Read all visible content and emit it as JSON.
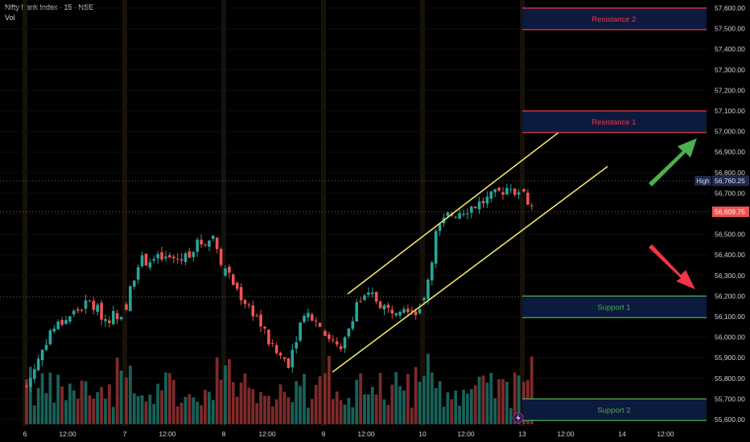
{
  "header": {
    "symbol_line": "Nifty Bank Index · 15 · NSE",
    "vol_label": "Vol"
  },
  "colors": {
    "bull": "#26a69a",
    "bear": "#ef5350",
    "channel": "#f5e663",
    "resistance": "#f23645",
    "support": "#4caf50",
    "zone_fill": "#0c1a3e"
  },
  "chart_data": {
    "type": "candlestick",
    "y_range": [
      55550,
      57660
    ],
    "y_ticks": [
      55600,
      55700,
      55800,
      55900,
      56000,
      56100,
      56200,
      56300,
      56400,
      56500,
      56600,
      56700,
      56800,
      56900,
      57000,
      57100,
      57200,
      57300,
      57400,
      57500,
      57600
    ],
    "y_tick_labels": [
      "55,600.00",
      "55,700.00",
      "55,800.00",
      "55,900.00",
      "56,000.00",
      "56,100.00",
      "56,200.00",
      "56,300.00",
      "56,400.00",
      "56,500.00",
      "56,600.00",
      "56,700.00",
      "56,800.00",
      "56,900.00",
      "57,000.00",
      "57,100.00",
      "57,200.00",
      "57,300.00",
      "57,400.00",
      "57,500.00",
      "57,600.00"
    ],
    "x_labels": [
      "6",
      "12:00",
      "7",
      "12:00",
      "8",
      "12:00",
      "9",
      "12:00",
      "10",
      "12:00",
      "13",
      "12:00",
      "14",
      "12:00"
    ],
    "session_starts": [
      "6",
      "7",
      "8",
      "9",
      "10",
      "13"
    ],
    "bars_per_session": 25,
    "sessions": [
      {
        "day": "6",
        "open": 55760,
        "path": [
          [
            0,
            55760
          ],
          [
            6,
            56030
          ],
          [
            12,
            56120
          ],
          [
            16,
            56170
          ],
          [
            20,
            56090
          ],
          [
            24,
            56120
          ]
        ]
      },
      {
        "day": "7",
        "open": 56160,
        "path": [
          [
            0,
            56160
          ],
          [
            3,
            56370
          ],
          [
            8,
            56380
          ],
          [
            14,
            56380
          ],
          [
            18,
            56450
          ],
          [
            22,
            56490
          ],
          [
            24,
            56380
          ]
        ]
      },
      {
        "day": "8",
        "open": 56300,
        "path": [
          [
            0,
            56320
          ],
          [
            4,
            56200
          ],
          [
            8,
            56100
          ],
          [
            12,
            55940
          ],
          [
            16,
            55880
          ],
          [
            20,
            56130
          ],
          [
            24,
            56060
          ]
        ]
      },
      {
        "day": "9",
        "open": 56030,
        "path": [
          [
            0,
            56030
          ],
          [
            4,
            55920
          ],
          [
            8,
            56170
          ],
          [
            12,
            56200
          ],
          [
            16,
            56130
          ],
          [
            20,
            56160
          ],
          [
            24,
            56120
          ]
        ]
      },
      {
        "day": "10",
        "open": 56180,
        "path": [
          [
            0,
            56180
          ],
          [
            3,
            56500
          ],
          [
            6,
            56590
          ],
          [
            10,
            56620
          ],
          [
            14,
            56650
          ],
          [
            18,
            56690
          ],
          [
            22,
            56740
          ],
          [
            24,
            56680
          ]
        ]
      },
      {
        "day": "13",
        "open": 56720,
        "path": [
          [
            0,
            56720
          ],
          [
            1,
            56650
          ],
          [
            2,
            56610
          ]
        ]
      }
    ],
    "markers": {
      "high": {
        "label": "High",
        "value": 56760.25,
        "value_label": "56,760.25"
      },
      "last": {
        "value": 56609.75,
        "value_label": "56,609.75"
      },
      "ref_line": 56195
    },
    "zones": [
      {
        "label": "Resistance 2",
        "top": 57600,
        "bottom": 57495,
        "kind": "resistance"
      },
      {
        "label": "Resistance 1",
        "top": 57100,
        "bottom": 56995,
        "kind": "resistance"
      },
      {
        "label": "Support 1",
        "top": 56200,
        "bottom": 56095,
        "kind": "support"
      },
      {
        "label": "Support 2",
        "top": 55700,
        "bottom": 55595,
        "kind": "support"
      }
    ],
    "channel": {
      "upper": [
        [
          56200,
          "9@12:00-ish start"
        ],
        [
          57010,
          "end"
        ]
      ],
      "upper_values": [
        56210,
        57025
      ],
      "lower_values": [
        55830,
        56830
      ]
    },
    "arrows": [
      {
        "direction": "up",
        "color": "#4caf50"
      },
      {
        "direction": "down",
        "color": "#f23645"
      }
    ]
  }
}
